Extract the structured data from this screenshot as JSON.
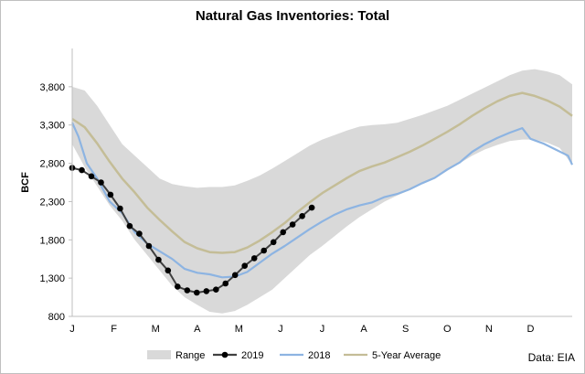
{
  "chart_data": {
    "type": "line",
    "title": "Natural Gas Inventories: Total",
    "ylabel": "BCF",
    "xlabel": "",
    "ylim": [
      800,
      4300
    ],
    "yticks": [
      800,
      1300,
      1800,
      2300,
      2800,
      3300,
      3800
    ],
    "ytick_labels": [
      "800",
      "1,300",
      "1,800",
      "2,300",
      "2,800",
      "3,300",
      "3,800"
    ],
    "xlim": [
      0,
      12
    ],
    "x_tick_labels": [
      "J",
      "F",
      "M",
      "A",
      "M",
      "J",
      "J",
      "A",
      "S",
      "O",
      "N",
      "D"
    ],
    "x_tick_positions": [
      0,
      1,
      2,
      3,
      4,
      5,
      6,
      7,
      8,
      9,
      10,
      11
    ],
    "grid": false,
    "legend_position": "bottom",
    "source": "Data: EIA",
    "colors": {
      "range": "#d9d9d9",
      "series_2019": "#404040",
      "series_2019_marker": "#000000",
      "series_2018": "#8db4e2",
      "five_year_avg": "#c4bd97"
    },
    "range": {
      "name": "Range",
      "x": [
        0,
        0.3,
        0.6,
        0.9,
        1.2,
        1.5,
        1.8,
        2.1,
        2.4,
        2.7,
        3.0,
        3.3,
        3.6,
        3.9,
        4.2,
        4.5,
        4.8,
        5.1,
        5.4,
        5.7,
        6.0,
        6.3,
        6.6,
        6.9,
        7.2,
        7.5,
        7.8,
        8.1,
        8.4,
        8.7,
        9.0,
        9.3,
        9.6,
        9.9,
        10.2,
        10.5,
        10.8,
        11.1,
        11.4,
        11.7,
        12.0
      ],
      "upper": [
        3800,
        3750,
        3550,
        3300,
        3050,
        2900,
        2750,
        2600,
        2530,
        2500,
        2480,
        2490,
        2490,
        2510,
        2570,
        2640,
        2730,
        2830,
        2930,
        3030,
        3110,
        3170,
        3230,
        3280,
        3300,
        3310,
        3330,
        3380,
        3430,
        3490,
        3550,
        3630,
        3710,
        3790,
        3870,
        3950,
        4010,
        4030,
        4000,
        3950,
        3830
      ],
      "lower": [
        3050,
        2750,
        2500,
        2250,
        2050,
        1800,
        1600,
        1400,
        1200,
        1050,
        950,
        860,
        840,
        870,
        950,
        1050,
        1150,
        1300,
        1450,
        1600,
        1720,
        1850,
        1980,
        2100,
        2200,
        2300,
        2380,
        2450,
        2530,
        2600,
        2700,
        2800,
        2900,
        2980,
        3040,
        3090,
        3110,
        3110,
        3070,
        3000,
        2780
      ]
    },
    "series": [
      {
        "name": "2019",
        "markers": true,
        "x": [
          0,
          0.23,
          0.46,
          0.69,
          0.92,
          1.15,
          1.38,
          1.61,
          1.84,
          2.07,
          2.3,
          2.53,
          2.76,
          2.99,
          3.22,
          3.45,
          3.68,
          3.91,
          4.14,
          4.37,
          4.6,
          4.83,
          5.06,
          5.29,
          5.52,
          5.75
        ],
        "values": [
          2740,
          2710,
          2630,
          2550,
          2390,
          2210,
          1980,
          1880,
          1720,
          1540,
          1400,
          1190,
          1140,
          1110,
          1130,
          1150,
          1230,
          1340,
          1460,
          1560,
          1660,
          1770,
          1900,
          2000,
          2110,
          2220
        ]
      },
      {
        "name": "2018",
        "markers": false,
        "x": [
          0,
          0.15,
          0.35,
          0.6,
          0.9,
          1.2,
          1.5,
          1.8,
          2.1,
          2.4,
          2.7,
          3.0,
          3.3,
          3.6,
          3.9,
          4.2,
          4.5,
          4.8,
          5.1,
          5.4,
          5.7,
          6.0,
          6.3,
          6.6,
          6.9,
          7.2,
          7.5,
          7.8,
          8.1,
          8.4,
          8.7,
          9.0,
          9.3,
          9.6,
          9.9,
          10.2,
          10.5,
          10.8,
          11.0,
          11.3,
          11.6,
          11.9,
          12.0
        ],
        "values": [
          3330,
          3150,
          2800,
          2600,
          2300,
          2150,
          1900,
          1750,
          1650,
          1550,
          1420,
          1370,
          1350,
          1310,
          1320,
          1380,
          1500,
          1620,
          1720,
          1830,
          1940,
          2040,
          2130,
          2200,
          2250,
          2290,
          2360,
          2400,
          2460,
          2540,
          2610,
          2720,
          2810,
          2950,
          3050,
          3130,
          3200,
          3260,
          3120,
          3060,
          2980,
          2900,
          2780
        ]
      },
      {
        "name": "5-Year Average",
        "markers": false,
        "x": [
          0,
          0.3,
          0.6,
          0.9,
          1.2,
          1.5,
          1.8,
          2.1,
          2.4,
          2.7,
          3.0,
          3.3,
          3.6,
          3.9,
          4.2,
          4.5,
          4.8,
          5.1,
          5.4,
          5.7,
          6.0,
          6.3,
          6.6,
          6.9,
          7.2,
          7.5,
          7.8,
          8.1,
          8.4,
          8.7,
          9.0,
          9.3,
          9.6,
          9.9,
          10.2,
          10.5,
          10.8,
          11.1,
          11.4,
          11.7,
          12.0
        ],
        "values": [
          3380,
          3270,
          3060,
          2820,
          2600,
          2420,
          2220,
          2060,
          1910,
          1770,
          1690,
          1640,
          1630,
          1640,
          1700,
          1790,
          1900,
          2020,
          2160,
          2290,
          2410,
          2510,
          2610,
          2700,
          2760,
          2810,
          2880,
          2950,
          3030,
          3120,
          3210,
          3310,
          3420,
          3520,
          3610,
          3680,
          3720,
          3680,
          3620,
          3540,
          3420
        ]
      }
    ]
  }
}
